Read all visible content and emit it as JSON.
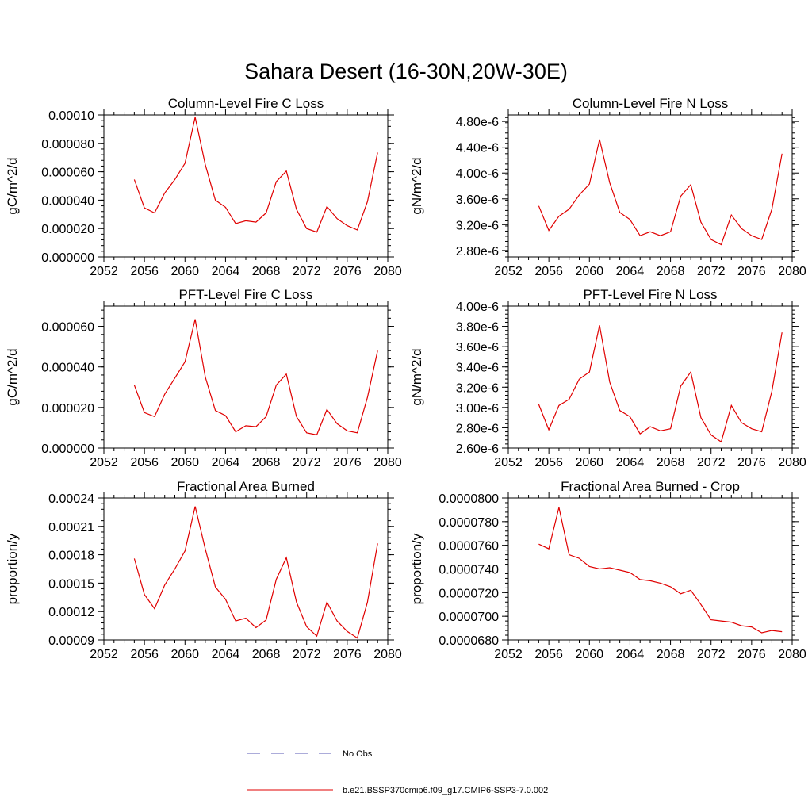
{
  "figure_title": "Sahara Desert (16-30N,20W-30E)",
  "legend": [
    {
      "label": "No Obs",
      "color": "#5a5ab4",
      "dash": true
    },
    {
      "label": "b.e21.BSSP370cmip6.f09_g17.CMIP6-SSP3-7.0.002",
      "color": "#e00000",
      "dash": false
    }
  ],
  "colors": {
    "series": "#e00000",
    "axis": "#000000"
  },
  "chart_data": [
    {
      "type": "line",
      "title": "Column-Level Fire C Loss",
      "ylabel": "gC/m^2/d",
      "xlim": [
        2052,
        2080
      ],
      "ylim": [
        0,
        0.0001
      ],
      "xticks": [
        2052,
        2056,
        2060,
        2064,
        2068,
        2072,
        2076,
        2080
      ],
      "yticks": [
        0,
        2e-05,
        4e-05,
        6e-05,
        8e-05,
        0.0001
      ],
      "ytick_labels": [
        "0.000000",
        "0.000020",
        "0.000040",
        "0.000060",
        "0.000080",
        "0.00010"
      ],
      "x": [
        2055,
        2056,
        2057,
        2058,
        2059,
        2060,
        2061,
        2062,
        2063,
        2064,
        2065,
        2066,
        2067,
        2068,
        2069,
        2070,
        2071,
        2072,
        2073,
        2074,
        2075,
        2076,
        2077,
        2078,
        2079
      ],
      "y": [
        5.45e-05,
        3.45e-05,
        3.1e-05,
        4.5e-05,
        5.45e-05,
        6.6e-05,
        9.85e-05,
        6.5e-05,
        4e-05,
        3.5e-05,
        2.35e-05,
        2.55e-05,
        2.45e-05,
        3.1e-05,
        5.3e-05,
        6.05e-05,
        3.35e-05,
        2e-05,
        1.75e-05,
        3.55e-05,
        2.7e-05,
        2.2e-05,
        1.9e-05,
        3.9e-05,
        7.35e-05
      ]
    },
    {
      "type": "line",
      "title": "Column-Level Fire N Loss",
      "ylabel": "gN/m^2/d",
      "xlim": [
        2052,
        2080
      ],
      "ylim": [
        2.7e-06,
        4.9e-06
      ],
      "xticks": [
        2052,
        2056,
        2060,
        2064,
        2068,
        2072,
        2076,
        2080
      ],
      "yticks": [
        2.8e-06,
        3.2e-06,
        3.6e-06,
        4e-06,
        4.4e-06,
        4.8e-06
      ],
      "ytick_labels": [
        "2.80e-6",
        "3.20e-6",
        "3.60e-6",
        "4.00e-6",
        "4.40e-6",
        "4.80e-6"
      ],
      "x": [
        2055,
        2056,
        2057,
        2058,
        2059,
        2060,
        2061,
        2062,
        2063,
        2064,
        2065,
        2066,
        2067,
        2068,
        2069,
        2070,
        2071,
        2072,
        2073,
        2074,
        2075,
        2076,
        2077,
        2078,
        2079
      ],
      "y": [
        3.49e-06,
        3.11e-06,
        3.33e-06,
        3.44e-06,
        3.66e-06,
        3.83e-06,
        4.52e-06,
        3.85e-06,
        3.39e-06,
        3.28e-06,
        3.03e-06,
        3.09e-06,
        3.03e-06,
        3.09e-06,
        3.64e-06,
        3.82e-06,
        3.24e-06,
        2.97e-06,
        2.89e-06,
        3.35e-06,
        3.14e-06,
        3.03e-06,
        2.97e-06,
        3.44e-06,
        4.3e-06
      ]
    },
    {
      "type": "line",
      "title": "PFT-Level Fire C Loss",
      "ylabel": "gC/m^2/d",
      "xlim": [
        2052,
        2080
      ],
      "ylim": [
        0,
        7e-05
      ],
      "xticks": [
        2052,
        2056,
        2060,
        2064,
        2068,
        2072,
        2076,
        2080
      ],
      "yticks": [
        0,
        2e-05,
        4e-05,
        6e-05
      ],
      "ytick_labels": [
        "0.000000",
        "0.000020",
        "0.000040",
        "0.000060"
      ],
      "x": [
        2055,
        2056,
        2057,
        2058,
        2059,
        2060,
        2061,
        2062,
        2063,
        2064,
        2065,
        2066,
        2067,
        2068,
        2069,
        2070,
        2071,
        2072,
        2073,
        2074,
        2075,
        2076,
        2077,
        2078,
        2079
      ],
      "y": [
        3.1e-05,
        1.75e-05,
        1.55e-05,
        2.65e-05,
        3.45e-05,
        4.25e-05,
        6.35e-05,
        3.5e-05,
        1.85e-05,
        1.6e-05,
        8e-06,
        1.1e-05,
        1.05e-05,
        1.55e-05,
        3.1e-05,
        3.65e-05,
        1.55e-05,
        7.5e-06,
        6.5e-06,
        1.9e-05,
        1.2e-05,
        8.5e-06,
        7.5e-06,
        2.5e-05,
        4.8e-05
      ]
    },
    {
      "type": "line",
      "title": "PFT-Level Fire N Loss",
      "ylabel": "gN/m^2/d",
      "xlim": [
        2052,
        2080
      ],
      "ylim": [
        2.6e-06,
        4e-06
      ],
      "xticks": [
        2052,
        2056,
        2060,
        2064,
        2068,
        2072,
        2076,
        2080
      ],
      "yticks": [
        2.6e-06,
        2.8e-06,
        3e-06,
        3.2e-06,
        3.4e-06,
        3.6e-06,
        3.8e-06,
        4e-06
      ],
      "ytick_labels": [
        "2.60e-6",
        "2.80e-6",
        "3.00e-6",
        "3.20e-6",
        "3.40e-6",
        "3.60e-6",
        "3.80e-6",
        "4.00e-6"
      ],
      "x": [
        2055,
        2056,
        2057,
        2058,
        2059,
        2060,
        2061,
        2062,
        2063,
        2064,
        2065,
        2066,
        2067,
        2068,
        2069,
        2070,
        2071,
        2072,
        2073,
        2074,
        2075,
        2076,
        2077,
        2078,
        2079
      ],
      "y": [
        3.03e-06,
        2.78e-06,
        3.02e-06,
        3.08e-06,
        3.28e-06,
        3.35e-06,
        3.81e-06,
        3.25e-06,
        2.97e-06,
        2.91e-06,
        2.74e-06,
        2.81e-06,
        2.77e-06,
        2.79e-06,
        3.21e-06,
        3.35e-06,
        2.9e-06,
        2.73e-06,
        2.66e-06,
        3.02e-06,
        2.85e-06,
        2.79e-06,
        2.76e-06,
        3.16e-06,
        3.74e-06
      ]
    },
    {
      "type": "line",
      "title": "Fractional Area Burned",
      "ylabel": "proportion/y",
      "xlim": [
        2052,
        2080
      ],
      "ylim": [
        9e-05,
        0.00024
      ],
      "xticks": [
        2052,
        2056,
        2060,
        2064,
        2068,
        2072,
        2076,
        2080
      ],
      "yticks": [
        9e-05,
        0.00012,
        0.00015,
        0.00018,
        0.00021,
        0.00024
      ],
      "ytick_labels": [
        "0.00009",
        "0.00012",
        "0.00015",
        "0.00018",
        "0.00021",
        "0.00024"
      ],
      "x": [
        2055,
        2056,
        2057,
        2058,
        2059,
        2060,
        2061,
        2062,
        2063,
        2064,
        2065,
        2066,
        2067,
        2068,
        2069,
        2070,
        2071,
        2072,
        2073,
        2074,
        2075,
        2076,
        2077,
        2078,
        2079
      ],
      "y": [
        0.000176,
        0.000138,
        0.000123,
        0.000148,
        0.000165,
        0.000184,
        0.000231,
        0.000186,
        0.000146,
        0.000133,
        0.00011,
        0.000113,
        0.000103,
        0.000111,
        0.000154,
        0.000177,
        0.00013,
        0.000104,
        9.4e-05,
        0.00013,
        0.00011,
        9.9e-05,
        9.2e-05,
        0.00013,
        0.000192
      ]
    },
    {
      "type": "line",
      "title": "Fractional Area Burned - Crop",
      "ylabel": "proportion/y",
      "xlim": [
        2052,
        2080
      ],
      "ylim": [
        6.8e-05,
        8e-05
      ],
      "xticks": [
        2052,
        2056,
        2060,
        2064,
        2068,
        2072,
        2076,
        2080
      ],
      "yticks": [
        6.8e-05,
        7e-05,
        7.2e-05,
        7.4e-05,
        7.6e-05,
        7.8e-05,
        8e-05
      ],
      "ytick_labels": [
        "0.0000680",
        "0.0000700",
        "0.0000720",
        "0.0000740",
        "0.0000760",
        "0.0000780",
        "0.0000800"
      ],
      "x": [
        2055,
        2056,
        2057,
        2058,
        2059,
        2060,
        2061,
        2062,
        2063,
        2064,
        2065,
        2066,
        2067,
        2068,
        2069,
        2070,
        2071,
        2072,
        2073,
        2074,
        2075,
        2076,
        2077,
        2078,
        2079
      ],
      "y": [
        7.61e-05,
        7.57e-05,
        7.92e-05,
        7.52e-05,
        7.49e-05,
        7.42e-05,
        7.4e-05,
        7.41e-05,
        7.39e-05,
        7.37e-05,
        7.31e-05,
        7.3e-05,
        7.28e-05,
        7.25e-05,
        7.19e-05,
        7.22e-05,
        7.1e-05,
        6.97e-05,
        6.96e-05,
        6.95e-05,
        6.92e-05,
        6.91e-05,
        6.86e-05,
        6.88e-05,
        6.87e-05
      ]
    }
  ]
}
